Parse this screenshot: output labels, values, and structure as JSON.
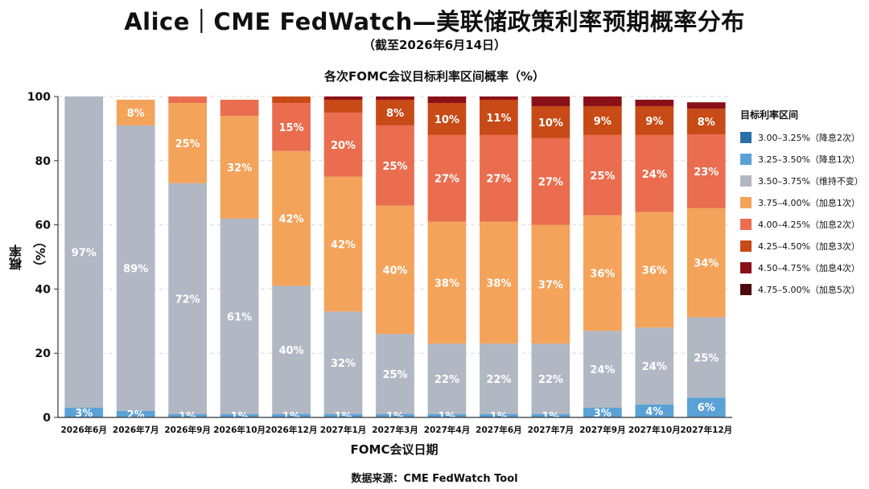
{
  "header": {
    "title": "Alice｜CME FedWatch—美联储政策利率预期概率分布",
    "subtitle": "（截至2026年6月14日）"
  },
  "footer": {
    "source": "数据来源：CME FedWatch Tool"
  },
  "legend": {
    "title": "目标利率区间",
    "items": [
      {
        "label": "3.00–3.25%（降息2次）",
        "color": "#2b6fa8"
      },
      {
        "label": "3.25–3.50%（降息1次）",
        "color": "#5aa1d6"
      },
      {
        "label": "3.50–3.75%（维持不变）",
        "color": "#b1b8c4"
      },
      {
        "label": "3.75–4.00%（加息1次）",
        "color": "#f3a35a"
      },
      {
        "label": "4.00–4.25%（加息2次）",
        "color": "#ea6d4f"
      },
      {
        "label": "4.25–4.50%（加息3次）",
        "color": "#c84a16"
      },
      {
        "label": "4.50–4.75%（加息4次）",
        "color": "#8a1018"
      },
      {
        "label": "4.75–5.00%（加息5次）",
        "color": "#4d0a0e"
      }
    ]
  },
  "chart_data": {
    "type": "bar",
    "stacked": true,
    "title": "各次FOMC会议目标利率区间概率（%）",
    "xlabel": "FOMC会议日期",
    "ylabel": "概率（%）",
    "ylim": [
      0,
      100
    ],
    "yticks": [
      0,
      20,
      40,
      60,
      80,
      100
    ],
    "grid": true,
    "legend_position": "right",
    "categories": [
      "2026年6月",
      "2026年7月",
      "2026年9月",
      "2026年10月",
      "2026年12月",
      "2027年1月",
      "2027年3月",
      "2027年4月",
      "2027年6月",
      "2027年7月",
      "2027年9月",
      "2027年10月",
      "2027年12月"
    ],
    "series": [
      {
        "name": "3.00–3.25%（降息2次）",
        "values": [
          0,
          0,
          0,
          0,
          0,
          0,
          0,
          0,
          0,
          0,
          0,
          0,
          0.2
        ]
      },
      {
        "name": "3.25–3.50%（降息1次）",
        "values": [
          3,
          2,
          1,
          1,
          1,
          1,
          1,
          1,
          1,
          1,
          3,
          4,
          6
        ]
      },
      {
        "name": "3.50–3.75%（维持不变）",
        "values": [
          97,
          89,
          72,
          61,
          40,
          32,
          25,
          22,
          22,
          22,
          24,
          24,
          25
        ]
      },
      {
        "name": "3.75–4.00%（加息1次）",
        "values": [
          0,
          8,
          25,
          32,
          42,
          42,
          40,
          38,
          38,
          37,
          36,
          36,
          34
        ]
      },
      {
        "name": "4.00–4.25%（加息2次）",
        "values": [
          0,
          0,
          2,
          5,
          15,
          20,
          25,
          27,
          27,
          27,
          25,
          24,
          23
        ]
      },
      {
        "name": "4.25–4.50%（加息3次）",
        "values": [
          0,
          0,
          0,
          0,
          2,
          4,
          8,
          10,
          11,
          10,
          9,
          9,
          8
        ]
      },
      {
        "name": "4.50–4.75%（加息4次）",
        "values": [
          0,
          0,
          0,
          0,
          0,
          1,
          1,
          2,
          3,
          3,
          3,
          2,
          2
        ]
      },
      {
        "name": "4.75–5.00%（加息5次）",
        "values": [
          0,
          0,
          0,
          0,
          0,
          0,
          0,
          0,
          0,
          0,
          0,
          0,
          0
        ]
      }
    ],
    "data_labels": [
      {
        "category": 0,
        "series": 1,
        "text": "3%"
      },
      {
        "category": 0,
        "series": 2,
        "text": "97%"
      },
      {
        "category": 1,
        "series": 1,
        "text": "2%"
      },
      {
        "category": 1,
        "series": 2,
        "text": "89%"
      },
      {
        "category": 1,
        "series": 3,
        "text": "8%"
      },
      {
        "category": 2,
        "series": 1,
        "text": "1%"
      },
      {
        "category": 2,
        "series": 2,
        "text": "72%"
      },
      {
        "category": 2,
        "series": 3,
        "text": "25%"
      },
      {
        "category": 3,
        "series": 1,
        "text": "1%"
      },
      {
        "category": 3,
        "series": 2,
        "text": "61%"
      },
      {
        "category": 3,
        "series": 3,
        "text": "32%"
      },
      {
        "category": 4,
        "series": 1,
        "text": "1%"
      },
      {
        "category": 4,
        "series": 2,
        "text": "40%"
      },
      {
        "category": 4,
        "series": 3,
        "text": "42%"
      },
      {
        "category": 4,
        "series": 4,
        "text": "15%"
      },
      {
        "category": 5,
        "series": 1,
        "text": "1%"
      },
      {
        "category": 5,
        "series": 2,
        "text": "32%"
      },
      {
        "category": 5,
        "series": 3,
        "text": "42%"
      },
      {
        "category": 5,
        "series": 4,
        "text": "20%"
      },
      {
        "category": 6,
        "series": 1,
        "text": "1%"
      },
      {
        "category": 6,
        "series": 2,
        "text": "25%"
      },
      {
        "category": 6,
        "series": 3,
        "text": "40%"
      },
      {
        "category": 6,
        "series": 4,
        "text": "25%"
      },
      {
        "category": 6,
        "series": 5,
        "text": "8%"
      },
      {
        "category": 7,
        "series": 1,
        "text": "1%"
      },
      {
        "category": 7,
        "series": 2,
        "text": "22%"
      },
      {
        "category": 7,
        "series": 3,
        "text": "38%"
      },
      {
        "category": 7,
        "series": 4,
        "text": "27%"
      },
      {
        "category": 7,
        "series": 5,
        "text": "10%"
      },
      {
        "category": 8,
        "series": 1,
        "text": "1%"
      },
      {
        "category": 8,
        "series": 2,
        "text": "22%"
      },
      {
        "category": 8,
        "series": 3,
        "text": "38%"
      },
      {
        "category": 8,
        "series": 4,
        "text": "27%"
      },
      {
        "category": 8,
        "series": 5,
        "text": "11%"
      },
      {
        "category": 9,
        "series": 1,
        "text": "1%"
      },
      {
        "category": 9,
        "series": 2,
        "text": "22%"
      },
      {
        "category": 9,
        "series": 3,
        "text": "37%"
      },
      {
        "category": 9,
        "series": 4,
        "text": "27%"
      },
      {
        "category": 9,
        "series": 5,
        "text": "10%"
      },
      {
        "category": 10,
        "series": 1,
        "text": "3%"
      },
      {
        "category": 10,
        "series": 2,
        "text": "24%"
      },
      {
        "category": 10,
        "series": 3,
        "text": "36%"
      },
      {
        "category": 10,
        "series": 4,
        "text": "25%"
      },
      {
        "category": 10,
        "series": 5,
        "text": "9%"
      },
      {
        "category": 11,
        "series": 1,
        "text": "4%"
      },
      {
        "category": 11,
        "series": 2,
        "text": "24%"
      },
      {
        "category": 11,
        "series": 3,
        "text": "36%"
      },
      {
        "category": 11,
        "series": 4,
        "text": "24%"
      },
      {
        "category": 11,
        "series": 5,
        "text": "9%"
      },
      {
        "category": 12,
        "series": 1,
        "text": "6%"
      },
      {
        "category": 12,
        "series": 2,
        "text": "25%"
      },
      {
        "category": 12,
        "series": 3,
        "text": "34%"
      },
      {
        "category": 12,
        "series": 4,
        "text": "23%"
      },
      {
        "category": 12,
        "series": 5,
        "text": "8%"
      }
    ]
  }
}
